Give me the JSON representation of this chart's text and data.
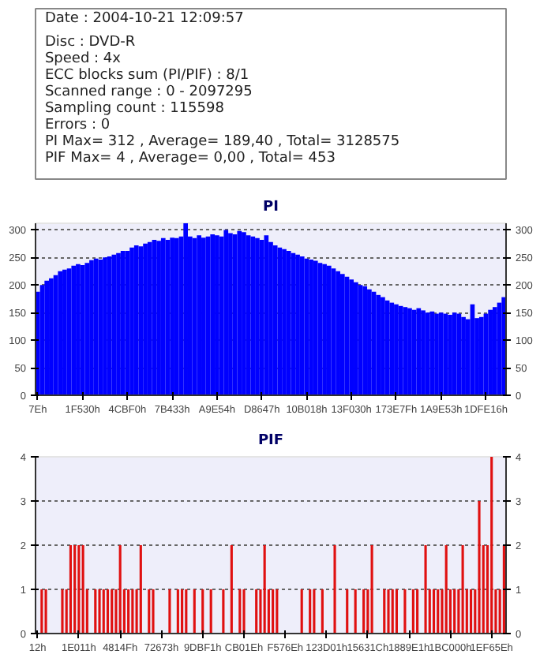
{
  "chart_data": [
    {
      "type": "other",
      "annotations": [
        "Date : 2004-10-21 12:09:57",
        "Disc : DVD-R",
        "Speed : 4x",
        "ECC blocks sum (PI/PIF) : 8/1",
        "Scanned range : 0 - 2097295",
        "Sampling count : 115598",
        "Errors : 0",
        "PI Max= 312 , Average= 189,40 , Total= 3128575",
        "PIF Max= 4 , Average= 0,00 , Total= 453"
      ]
    },
    {
      "type": "bar",
      "title": "PI",
      "categories": [
        "7Eh",
        null,
        null,
        null,
        null,
        null,
        null,
        null,
        null,
        null,
        "1F530h",
        null,
        null,
        null,
        null,
        null,
        null,
        null,
        null,
        null,
        "4CBF0h",
        null,
        null,
        null,
        null,
        null,
        null,
        null,
        null,
        null,
        "7B433h",
        null,
        null,
        null,
        null,
        null,
        null,
        null,
        null,
        null,
        "A9E54h",
        null,
        null,
        null,
        null,
        null,
        null,
        null,
        null,
        null,
        "D8647h",
        null,
        null,
        null,
        null,
        null,
        null,
        null,
        null,
        null,
        "10B018h",
        null,
        null,
        null,
        null,
        null,
        null,
        null,
        null,
        null,
        "13F030h",
        null,
        null,
        null,
        null,
        null,
        null,
        null,
        null,
        null,
        "173E7Fh",
        null,
        null,
        null,
        null,
        null,
        null,
        null,
        null,
        null,
        "1A9E53h",
        null,
        null,
        null,
        null,
        null,
        null,
        null,
        null,
        null,
        "1DFE16h",
        null,
        null,
        null,
        null
      ],
      "values": [
        188,
        200,
        208,
        212,
        218,
        225,
        228,
        230,
        235,
        238,
        236,
        240,
        245,
        248,
        246,
        250,
        252,
        255,
        258,
        262,
        262,
        268,
        272,
        270,
        275,
        278,
        282,
        280,
        285,
        282,
        286,
        285,
        288,
        312,
        288,
        285,
        290,
        286,
        288,
        292,
        290,
        288,
        300,
        294,
        292,
        298,
        296,
        290,
        288,
        285,
        282,
        290,
        278,
        272,
        268,
        265,
        262,
        258,
        255,
        252,
        248,
        246,
        244,
        240,
        238,
        235,
        230,
        225,
        220,
        215,
        210,
        205,
        200,
        198,
        192,
        188,
        182,
        178,
        172,
        168,
        165,
        162,
        160,
        158,
        155,
        158,
        154,
        150,
        152,
        148,
        150,
        148,
        146,
        150,
        148,
        142,
        138,
        165,
        140,
        142,
        148,
        155,
        160,
        168,
        178
      ],
      "color": "#0000ff",
      "ylim": [
        0,
        312
      ],
      "yticks": [
        0,
        50,
        100,
        150,
        200,
        250,
        300
      ],
      "y2lim": [
        0,
        312
      ],
      "y2ticks": [
        0,
        50,
        100,
        150,
        200,
        250,
        300
      ],
      "grid": "y"
    },
    {
      "type": "bar",
      "title": "PIF",
      "categories": [
        "12h",
        null,
        null,
        null,
        null,
        null,
        null,
        null,
        null,
        null,
        "1E011h",
        null,
        null,
        null,
        null,
        null,
        null,
        null,
        null,
        null,
        "4814Fh",
        null,
        null,
        null,
        null,
        null,
        null,
        null,
        null,
        null,
        "72673h",
        null,
        null,
        null,
        null,
        null,
        null,
        null,
        null,
        null,
        "9DBF1h",
        null,
        null,
        null,
        null,
        null,
        null,
        null,
        null,
        null,
        "CB01Eh",
        null,
        null,
        null,
        null,
        null,
        null,
        null,
        null,
        null,
        "F576Eh",
        null,
        null,
        null,
        null,
        null,
        null,
        null,
        null,
        null,
        "123D01h",
        null,
        null,
        null,
        null,
        null,
        null,
        null,
        null,
        null,
        "15631Ch",
        null,
        null,
        null,
        null,
        null,
        null,
        null,
        null,
        null,
        "1889E1h",
        null,
        null,
        null,
        null,
        null,
        null,
        null,
        null,
        null,
        "1BC000h",
        null,
        null,
        null,
        null,
        null,
        null,
        null,
        null,
        null,
        "1EF65Eh",
        null,
        null,
        null
      ],
      "values": [
        0,
        1,
        1,
        0,
        0,
        0,
        1,
        1,
        2,
        2,
        2,
        2,
        1,
        0,
        1,
        1,
        1,
        1,
        1,
        1,
        2,
        1,
        1,
        1,
        1,
        2,
        0,
        1,
        1,
        0,
        0,
        0,
        1,
        0,
        1,
        1,
        1,
        0,
        1,
        0,
        1,
        0,
        1,
        0,
        0,
        1,
        0,
        2,
        0,
        1,
        1,
        0,
        0,
        1,
        1,
        2,
        1,
        1,
        1,
        0,
        0,
        0,
        0,
        0,
        1,
        0,
        1,
        1,
        0,
        1,
        0,
        0,
        2,
        0,
        0,
        1,
        0,
        1,
        0,
        1,
        1,
        2,
        0,
        0,
        1,
        1,
        1,
        1,
        0,
        1,
        0,
        1,
        1,
        0,
        2,
        1,
        1,
        1,
        1,
        2,
        1,
        1,
        1,
        2,
        1,
        1,
        1,
        3,
        2,
        2,
        4,
        1,
        1,
        2
      ],
      "color": "#e01010",
      "ylim": [
        0,
        4
      ],
      "yticks": [
        0,
        1,
        2,
        3,
        4
      ],
      "y2lim": [
        0,
        4
      ],
      "y2ticks": [
        0,
        1,
        2,
        3,
        4
      ],
      "grid": "y"
    }
  ]
}
